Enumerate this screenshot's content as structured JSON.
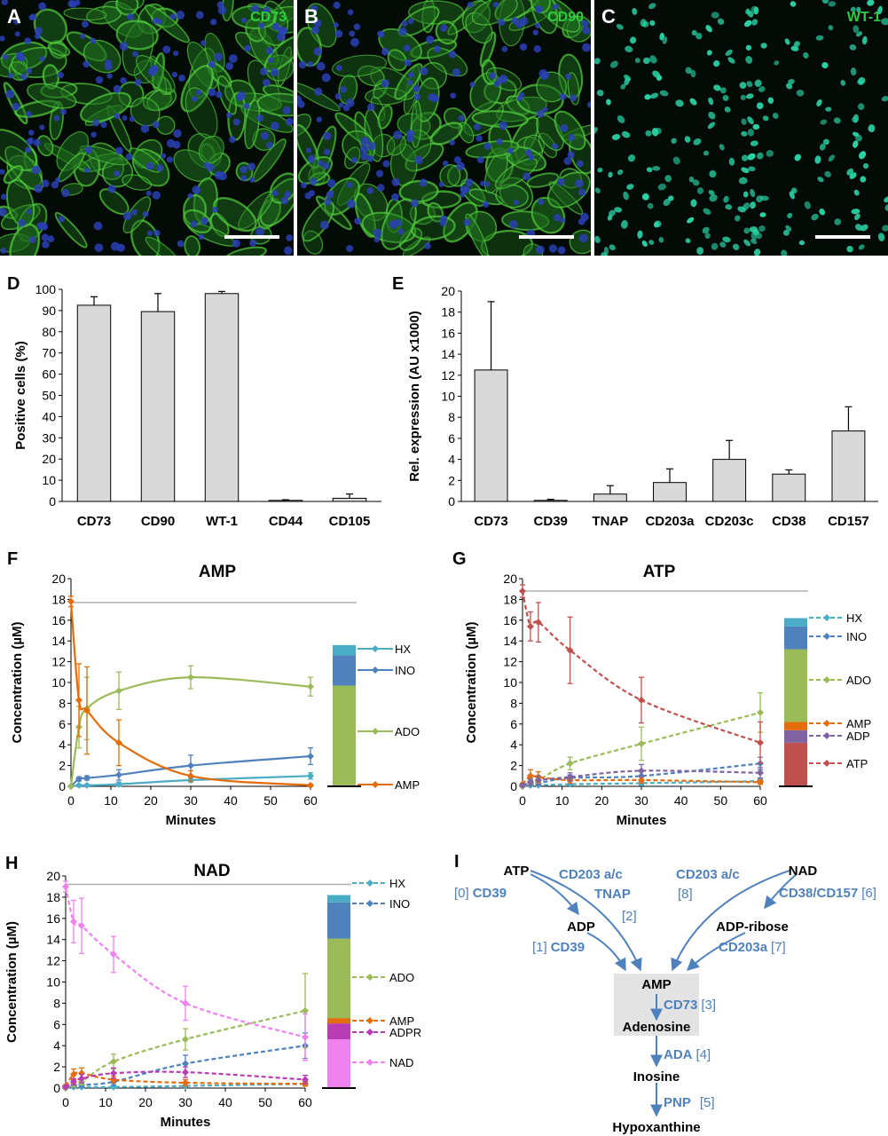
{
  "colors": {
    "bar_fill": "#d9d9d9",
    "hx": "#4bacc6",
    "ino": "#4f81bd",
    "ado": "#9bbb59",
    "amp": "#e46c0a",
    "adp": "#8064a2",
    "atp": "#c0504d",
    "adpr": "#b83db4",
    "nad": "#ee82ee",
    "pathway": "#4f81bd",
    "green_label": "#2ecc40"
  },
  "images": [
    {
      "letter": "A",
      "marker": "CD73"
    },
    {
      "letter": "B",
      "marker": "CD90"
    },
    {
      "letter": "C",
      "marker": "WT-1"
    }
  ],
  "chart_data": [
    {
      "panel": "D",
      "type": "bar",
      "categories": [
        "CD73",
        "CD90",
        "WT-1",
        "CD44",
        "CD105"
      ],
      "values": [
        92.5,
        89.5,
        98,
        0.5,
        1.5
      ],
      "errors": [
        4,
        8.5,
        1,
        0.3,
        2
      ],
      "ylabel": "Positive cells (%)",
      "ylim": [
        0,
        100
      ],
      "yticks": [
        "0",
        "10",
        "20",
        "30",
        "40",
        "50",
        "60",
        "70",
        "80",
        "90",
        "100"
      ]
    },
    {
      "panel": "E",
      "type": "bar",
      "categories": [
        "CD73",
        "CD39",
        "TNAP",
        "CD203a",
        "CD203c",
        "CD38",
        "CD157"
      ],
      "values": [
        12.5,
        0.1,
        0.7,
        1.8,
        4,
        2.6,
        6.7
      ],
      "errors": [
        6.5,
        0.1,
        0.8,
        1.3,
        1.8,
        0.4,
        2.3
      ],
      "ylabel": "Rel. expression (AU x1000)",
      "ylim": [
        0,
        20
      ],
      "yticks": [
        "0",
        "2",
        "4",
        "6",
        "8",
        "10",
        "12",
        "14",
        "16",
        "18",
        "20"
      ]
    },
    {
      "panel": "F",
      "type": "line",
      "title": "AMP",
      "xlabel": "Minutes",
      "ylabel": "Concentration (µM)",
      "xlim": [
        0,
        60
      ],
      "ylim": [
        0,
        20
      ],
      "xticks": [
        "0",
        "10",
        "20",
        "30",
        "40",
        "50",
        "60"
      ],
      "yticks": [
        "0",
        "2",
        "4",
        "6",
        "8",
        "10",
        "12",
        "14",
        "16",
        "18",
        "20"
      ],
      "reference": 17.7,
      "x": [
        0,
        2,
        4,
        12,
        30,
        60
      ],
      "series": [
        {
          "name": "HX",
          "color": "hx",
          "values": [
            0,
            0.1,
            0.1,
            0.2,
            0.6,
            1
          ],
          "err": [
            0,
            0.1,
            0.1,
            0.2,
            0.2,
            0.3
          ]
        },
        {
          "name": "INO",
          "color": "ino",
          "values": [
            0,
            0.7,
            0.8,
            1.1,
            2,
            2.9
          ],
          "err": [
            0,
            0.2,
            0.2,
            0.5,
            1,
            0.8
          ]
        },
        {
          "name": "ADO",
          "color": "ado",
          "values": [
            0,
            5.7,
            7.5,
            9.2,
            10.5,
            9.6
          ],
          "err": [
            0,
            2,
            3,
            1.8,
            1.1,
            0.9
          ]
        },
        {
          "name": "AMP",
          "color": "amp",
          "values": [
            17.8,
            8.3,
            7.3,
            4.2,
            1,
            0.1
          ],
          "err": [
            0.5,
            3.5,
            4.2,
            2.2,
            0.5,
            0.1
          ]
        }
      ],
      "stack": [
        {
          "name": "HX",
          "value": 1
        },
        {
          "name": "INO",
          "value": 2.9
        },
        {
          "name": "ADO",
          "value": 9.6
        },
        {
          "name": "AMP",
          "value": 0.1
        }
      ]
    },
    {
      "panel": "G",
      "type": "line",
      "title": "ATP",
      "xlabel": "Minutes",
      "ylabel": "Concentration (µM)",
      "xlim": [
        0,
        60
      ],
      "ylim": [
        0,
        20
      ],
      "xticks": [
        "0",
        "10",
        "20",
        "30",
        "40",
        "50",
        "60"
      ],
      "yticks": [
        "0",
        "2",
        "4",
        "6",
        "8",
        "10",
        "12",
        "14",
        "16",
        "18",
        "20"
      ],
      "reference": 18.8,
      "x": [
        0,
        2,
        4,
        12,
        30,
        60
      ],
      "series": [
        {
          "name": "HX",
          "color": "hx",
          "values": [
            0,
            0.1,
            0.1,
            0.2,
            0.3,
            0.5
          ],
          "err": [
            0,
            0.1,
            0.1,
            0.1,
            0.2,
            0.2
          ]
        },
        {
          "name": "INO",
          "color": "ino",
          "values": [
            0,
            0.2,
            0.3,
            0.8,
            1,
            2.2
          ],
          "err": [
            0,
            0.1,
            0.2,
            0.3,
            0.5,
            0.6
          ]
        },
        {
          "name": "ADO",
          "color": "ado",
          "values": [
            0,
            0.5,
            0.6,
            2.2,
            4.1,
            7.1
          ],
          "err": [
            0,
            0.3,
            0.3,
            0.6,
            1.6,
            1.9
          ]
        },
        {
          "name": "AMP",
          "color": "amp",
          "values": [
            0.2,
            1,
            0.9,
            0.6,
            0.6,
            0.4
          ],
          "err": [
            0.1,
            0.6,
            0.5,
            0.3,
            0.3,
            0.2
          ]
        },
        {
          "name": "ADP",
          "color": "adp",
          "values": [
            0.1,
            0.4,
            0.6,
            0.9,
            1.5,
            1.3
          ],
          "err": [
            0.1,
            0.3,
            0.4,
            0.4,
            0.6,
            0.5
          ]
        },
        {
          "name": "ATP",
          "color": "atp",
          "values": [
            18.8,
            15.4,
            15.8,
            13.1,
            8.3,
            4.2
          ],
          "err": [
            0.6,
            1.4,
            1.9,
            3.2,
            2.2,
            2
          ]
        }
      ],
      "stack": [
        {
          "name": "HX",
          "value": 0.8
        },
        {
          "name": "INO",
          "value": 2.2
        },
        {
          "name": "ADO",
          "value": 7
        },
        {
          "name": "AMP",
          "value": 0.8
        },
        {
          "name": "ADP",
          "value": 1.2
        },
        {
          "name": "ATP",
          "value": 4.2
        }
      ]
    },
    {
      "panel": "H",
      "type": "line",
      "title": "NAD",
      "xlabel": "Minutes",
      "ylabel": "Concentration (µM)",
      "xlim": [
        0,
        60
      ],
      "ylim": [
        0,
        20
      ],
      "xticks": [
        "0",
        "10",
        "20",
        "30",
        "40",
        "50",
        "60"
      ],
      "yticks": [
        "0",
        "2",
        "4",
        "6",
        "8",
        "10",
        "12",
        "14",
        "16",
        "18",
        "20"
      ],
      "reference": 19.2,
      "x": [
        0,
        2,
        4,
        12,
        30,
        60
      ],
      "series": [
        {
          "name": "HX",
          "color": "hx",
          "values": [
            0,
            0.1,
            0.1,
            0.1,
            0.2,
            0.4
          ],
          "err": [
            0,
            0.1,
            0.1,
            0.1,
            0.1,
            0.2
          ]
        },
        {
          "name": "INO",
          "color": "ino",
          "values": [
            0,
            0.2,
            0.3,
            0.6,
            2.3,
            4
          ],
          "err": [
            0,
            0.1,
            0.2,
            0.3,
            0.8,
            1.2
          ]
        },
        {
          "name": "ADO",
          "color": "ado",
          "values": [
            0,
            0.4,
            0.6,
            2.5,
            4.6,
            7.3
          ],
          "err": [
            0,
            0.3,
            0.3,
            0.7,
            1,
            3.5
          ]
        },
        {
          "name": "AMP",
          "color": "amp",
          "values": [
            0.2,
            1.3,
            1.4,
            0.8,
            0.5,
            0.4
          ],
          "err": [
            0.1,
            0.5,
            0.5,
            0.3,
            0.3,
            0.2
          ]
        },
        {
          "name": "ADPR",
          "color": "adpr",
          "values": [
            0.1,
            0.6,
            0.9,
            1.4,
            1.5,
            0.8
          ],
          "err": [
            0.1,
            0.3,
            0.4,
            0.5,
            0.5,
            0.4
          ]
        },
        {
          "name": "NAD",
          "color": "nad",
          "values": [
            19,
            15.7,
            15.3,
            12.6,
            8,
            4.8
          ],
          "err": [
            0.5,
            2,
            2.6,
            1.7,
            1.6,
            2.2
          ]
        }
      ],
      "stack": [
        {
          "name": "HX",
          "value": 0.7
        },
        {
          "name": "INO",
          "value": 3.4
        },
        {
          "name": "ADO",
          "value": 7.5
        },
        {
          "name": "AMP",
          "value": 0.5
        },
        {
          "name": "ADPR",
          "value": 1.5
        },
        {
          "name": "NAD",
          "value": 4.6
        }
      ]
    }
  ],
  "pathway": {
    "letter": "I",
    "metabolites": {
      "atp": "ATP",
      "adp": "ADP",
      "amp": "AMP",
      "adenosine": "Adenosine",
      "inosine": "Inosine",
      "hypoxanthine": "Hypoxanthine",
      "nad": "NAD",
      "adpribose": "ADP-ribose"
    },
    "enzymes": [
      {
        "ref": "[0]",
        "name": "CD39"
      },
      {
        "ref": "[1]",
        "name": "CD39"
      },
      {
        "ref": "[2]",
        "name": "CD203 a/c",
        "name2": "TNAP"
      },
      {
        "ref": "[3]",
        "name": "CD73"
      },
      {
        "ref": "[4]",
        "name": "ADA"
      },
      {
        "ref": "[5]",
        "name": "PNP"
      },
      {
        "ref": "[6]",
        "name": "CD38/CD157"
      },
      {
        "ref": "[7]",
        "name": "CD203a"
      },
      {
        "ref": "[8]",
        "name": "CD203 a/c"
      }
    ]
  }
}
